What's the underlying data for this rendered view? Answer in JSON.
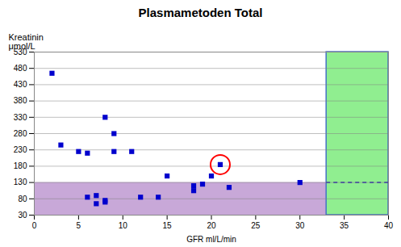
{
  "chart_data": {
    "type": "scatter",
    "title": "Plasmametoden Total",
    "xlabel": "GFR ml/L/min",
    "ylabel": "Kreatinin\nμmol/L",
    "xlim": [
      0,
      40
    ],
    "ylim": [
      30,
      530
    ],
    "xticks": [
      0,
      5,
      10,
      15,
      20,
      25,
      30,
      35,
      40
    ],
    "yticks": [
      30,
      80,
      130,
      180,
      230,
      280,
      330,
      380,
      430,
      480,
      530
    ],
    "grid": "y",
    "x": [
      2,
      3,
      5,
      6,
      6,
      7,
      7,
      8,
      8,
      8,
      9,
      9,
      11,
      12,
      14,
      15,
      18,
      18,
      19,
      20,
      21,
      22,
      30
    ],
    "y": [
      465,
      245,
      225,
      220,
      85,
      90,
      65,
      330,
      75,
      70,
      280,
      225,
      225,
      85,
      85,
      150,
      120,
      105,
      125,
      150,
      185,
      115,
      130
    ],
    "color": "#0000CD",
    "marker": "square",
    "regions": [
      {
        "x1": 0,
        "x2": 33,
        "y1": 30,
        "y2": 130,
        "color": "#C8A8D8"
      },
      {
        "x1": 33,
        "x2": 40,
        "y1": 30,
        "y2": 530,
        "color": "#90EE90",
        "border_color": "#4472C4"
      }
    ],
    "dashed_line": {
      "x1": 33,
      "x2": 40,
      "y": 130,
      "color": "#4040A0",
      "line_style": "dashed"
    },
    "circled_point": {
      "x": 21,
      "y": 185,
      "color": "red"
    }
  }
}
